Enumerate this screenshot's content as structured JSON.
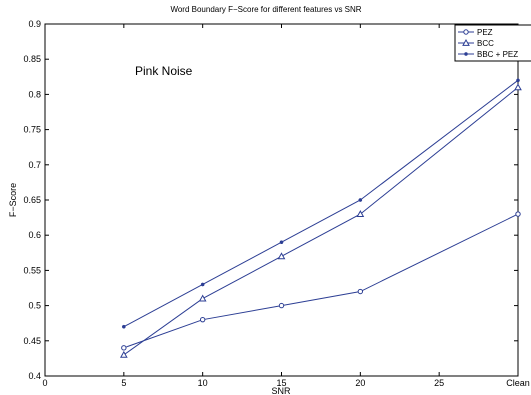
{
  "chart_data": {
    "type": "line",
    "title": "Word Boundary F−Score for different features vs SNR",
    "xlabel": "SNR",
    "ylabel": "F−Score",
    "annotation": "Pink Noise",
    "x": [
      5,
      10,
      15,
      20,
      30
    ],
    "xlim": [
      0,
      30
    ],
    "ylim": [
      0.4,
      0.9
    ],
    "xticks": [
      0,
      5,
      10,
      15,
      20,
      25,
      30
    ],
    "xticklabels": [
      "0",
      "5",
      "10",
      "15",
      "20",
      "25",
      "Clean"
    ],
    "yticks": [
      0.4,
      0.45,
      0.5,
      0.55,
      0.6,
      0.65,
      0.7,
      0.75,
      0.8,
      0.85,
      0.9
    ],
    "yticklabels": [
      "0.4",
      "0.45",
      "0.5",
      "0.55",
      "0.6",
      "0.65",
      "0.7",
      "0.75",
      "0.8",
      "0.85",
      "0.9"
    ],
    "grid": false,
    "legend_position": "top-right",
    "series": [
      {
        "name": "PEZ",
        "marker": "circle",
        "color": "#2c3e94",
        "values": [
          0.44,
          0.48,
          0.5,
          0.52,
          0.63
        ]
      },
      {
        "name": "BCC",
        "marker": "triangle",
        "color": "#2c3e94",
        "values": [
          0.43,
          0.51,
          0.57,
          0.63,
          0.81
        ]
      },
      {
        "name": "BBC + PEZ",
        "marker": "dot",
        "color": "#2c3e94",
        "values": [
          0.47,
          0.53,
          0.59,
          0.65,
          0.82
        ]
      }
    ]
  }
}
